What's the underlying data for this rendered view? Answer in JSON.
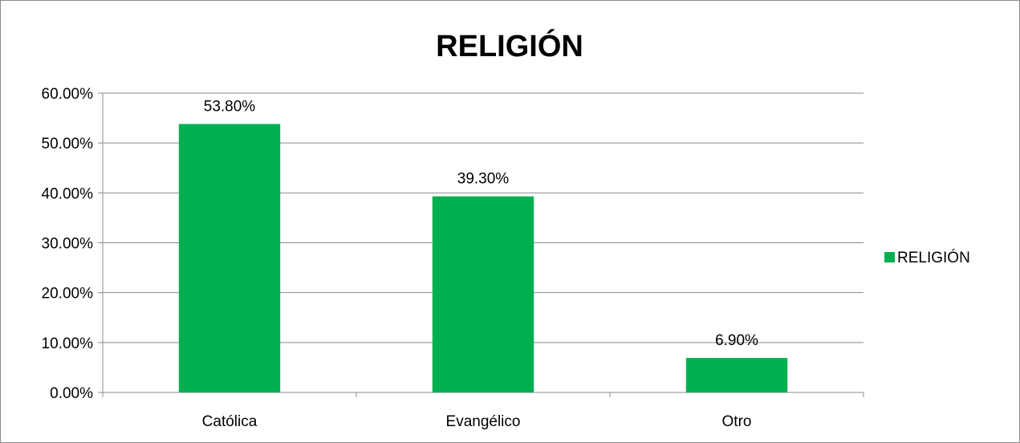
{
  "chart_data": {
    "type": "bar",
    "title": "RELIGIÓN",
    "xlabel": "",
    "ylabel": "",
    "categories": [
      "Católica",
      "Evangélico",
      "Otro"
    ],
    "series": [
      {
        "name": "RELIGIÓN",
        "values": [
          53.8,
          39.3,
          6.9
        ],
        "data_labels": [
          "53.80%",
          "39.30%",
          "6.90%"
        ],
        "color": "#00b050"
      }
    ],
    "y_ticks": [
      "0.00%",
      "10.00%",
      "20.00%",
      "30.00%",
      "40.00%",
      "50.00%",
      "60.00%"
    ],
    "ylim": [
      0,
      60
    ],
    "y_tick_step": 10,
    "grid": true,
    "legend_position": "right"
  }
}
